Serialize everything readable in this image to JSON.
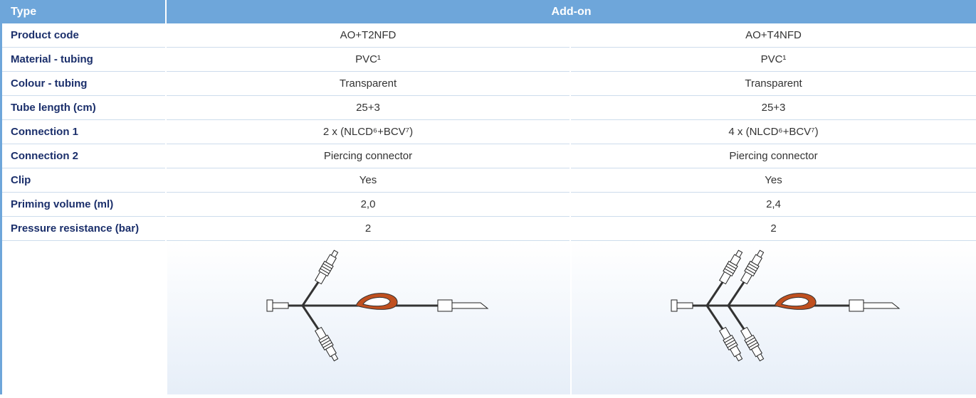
{
  "table": {
    "header": [
      "Type",
      "Add-on"
    ],
    "rows": [
      [
        "Product code",
        "AO+T2NFD",
        "AO+T4NFD"
      ],
      [
        "Material - tubing",
        "PVC¹",
        "PVC¹"
      ],
      [
        "Colour - tubing",
        "Transparent",
        "Transparent"
      ],
      [
        "Tube length (cm)",
        "25+3",
        "25+3"
      ],
      [
        "Connection 1",
        "2 x (NLCD⁶+BCV⁷)",
        "4 x (NLCD⁶+BCV⁷)"
      ],
      [
        "Connection 2",
        "Piercing connector",
        "Piercing connector"
      ],
      [
        "Clip",
        "Yes",
        "Yes"
      ],
      [
        "Priming volume (ml)",
        "2,0",
        "2,4"
      ],
      [
        "Pressure resistance (bar)",
        "2",
        "2"
      ]
    ]
  }
}
